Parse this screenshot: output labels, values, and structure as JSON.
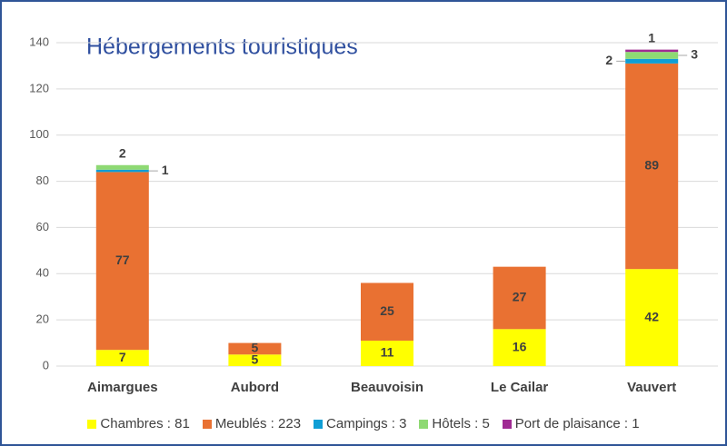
{
  "chart_data": {
    "type": "stacked_bar",
    "title": "Hébergements touristiques",
    "categories": [
      "Aimargues",
      "Aubord",
      "Beauvoisin",
      "Le Cailar",
      "Vauvert"
    ],
    "series": [
      {
        "name": "Chambres : 81",
        "color": "#ffff00",
        "values": [
          7,
          5,
          11,
          16,
          42
        ]
      },
      {
        "name": "Meublés : 223",
        "color": "#e97132",
        "values": [
          77,
          5,
          25,
          27,
          89
        ]
      },
      {
        "name": "Campings : 3",
        "color": "#0f9ed5",
        "values": [
          1,
          0,
          0,
          0,
          2
        ]
      },
      {
        "name": "Hôtels : 5",
        "color": "#8ed973",
        "values": [
          2,
          0,
          0,
          0,
          3
        ]
      },
      {
        "name": "Port de plaisance : 1",
        "color": "#a02b93",
        "values": [
          0,
          0,
          0,
          0,
          1
        ]
      }
    ],
    "ylim": [
      0,
      140
    ],
    "yticks": [
      0,
      20,
      40,
      60,
      80,
      100,
      120,
      140
    ],
    "grid": true,
    "legend": "bottom"
  }
}
